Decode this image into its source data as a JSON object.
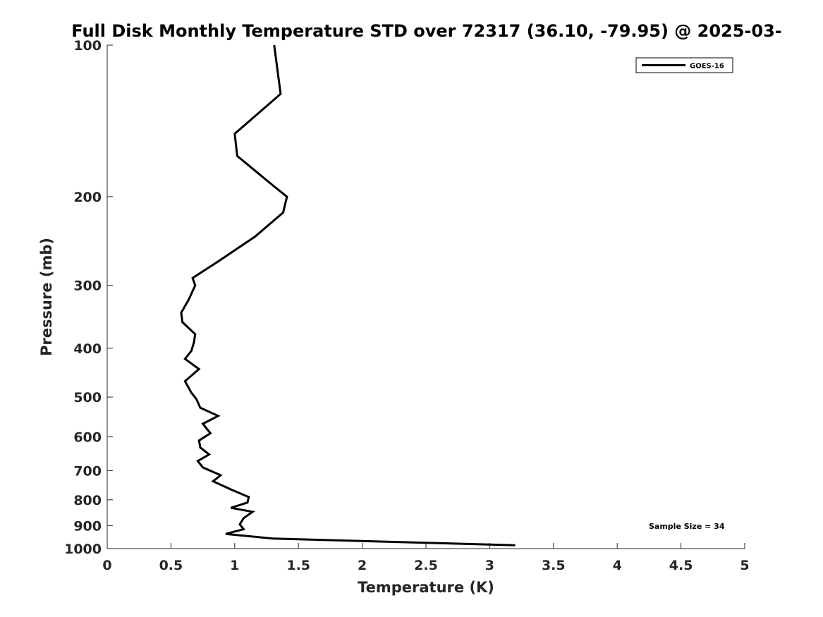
{
  "chart_data": {
    "type": "line",
    "title": "Full Disk Monthly Temperature STD over 72317 (36.10, -79.95) @ 2025-03-",
    "xlabel": "Temperature (K)",
    "ylabel": "Pressure (mb)",
    "xlim": [
      0,
      5
    ],
    "ylim": [
      100,
      1000
    ],
    "y_scale": "log",
    "y_reversed": true,
    "x_ticks": [
      0,
      0.5,
      1,
      1.5,
      2,
      2.5,
      3,
      3.5,
      4,
      4.5,
      5
    ],
    "x_tick_labels": [
      "0",
      "0.5",
      "1",
      "1.5",
      "2",
      "2.5",
      "3",
      "3.5",
      "4",
      "4.5",
      "5"
    ],
    "y_ticks": [
      100,
      200,
      300,
      400,
      500,
      600,
      700,
      800,
      900,
      1000
    ],
    "y_tick_labels": [
      "100",
      "200",
      "300",
      "400",
      "500",
      "600",
      "700",
      "800",
      "900",
      "1000"
    ],
    "grid": false,
    "legend_position": "top-right",
    "annotation": "Sample Size = 34",
    "series": [
      {
        "name": "GOES-16",
        "color": "#000000",
        "points": [
          [
            1.31,
            100
          ],
          [
            1.36,
            125
          ],
          [
            1.0,
            150
          ],
          [
            1.02,
            166
          ],
          [
            1.3,
            190
          ],
          [
            1.41,
            200
          ],
          [
            1.38,
            215
          ],
          [
            1.16,
            240
          ],
          [
            0.86,
            270
          ],
          [
            0.67,
            290
          ],
          [
            0.69,
            300
          ],
          [
            0.64,
            320
          ],
          [
            0.58,
            340
          ],
          [
            0.59,
            355
          ],
          [
            0.69,
            375
          ],
          [
            0.68,
            390
          ],
          [
            0.66,
            405
          ],
          [
            0.61,
            420
          ],
          [
            0.72,
            440
          ],
          [
            0.61,
            465
          ],
          [
            0.66,
            490
          ],
          [
            0.7,
            505
          ],
          [
            0.73,
            525
          ],
          [
            0.87,
            545
          ],
          [
            0.75,
            565
          ],
          [
            0.81,
            590
          ],
          [
            0.72,
            610
          ],
          [
            0.73,
            630
          ],
          [
            0.8,
            650
          ],
          [
            0.71,
            670
          ],
          [
            0.75,
            690
          ],
          [
            0.89,
            715
          ],
          [
            0.83,
            735
          ],
          [
            0.98,
            765
          ],
          [
            1.11,
            790
          ],
          [
            1.1,
            810
          ],
          [
            0.97,
            830
          ],
          [
            1.14,
            845
          ],
          [
            1.07,
            870
          ],
          [
            1.04,
            895
          ],
          [
            1.07,
            915
          ],
          [
            0.93,
            935
          ],
          [
            1.3,
            955
          ],
          [
            3.2,
            985
          ]
        ]
      }
    ]
  }
}
